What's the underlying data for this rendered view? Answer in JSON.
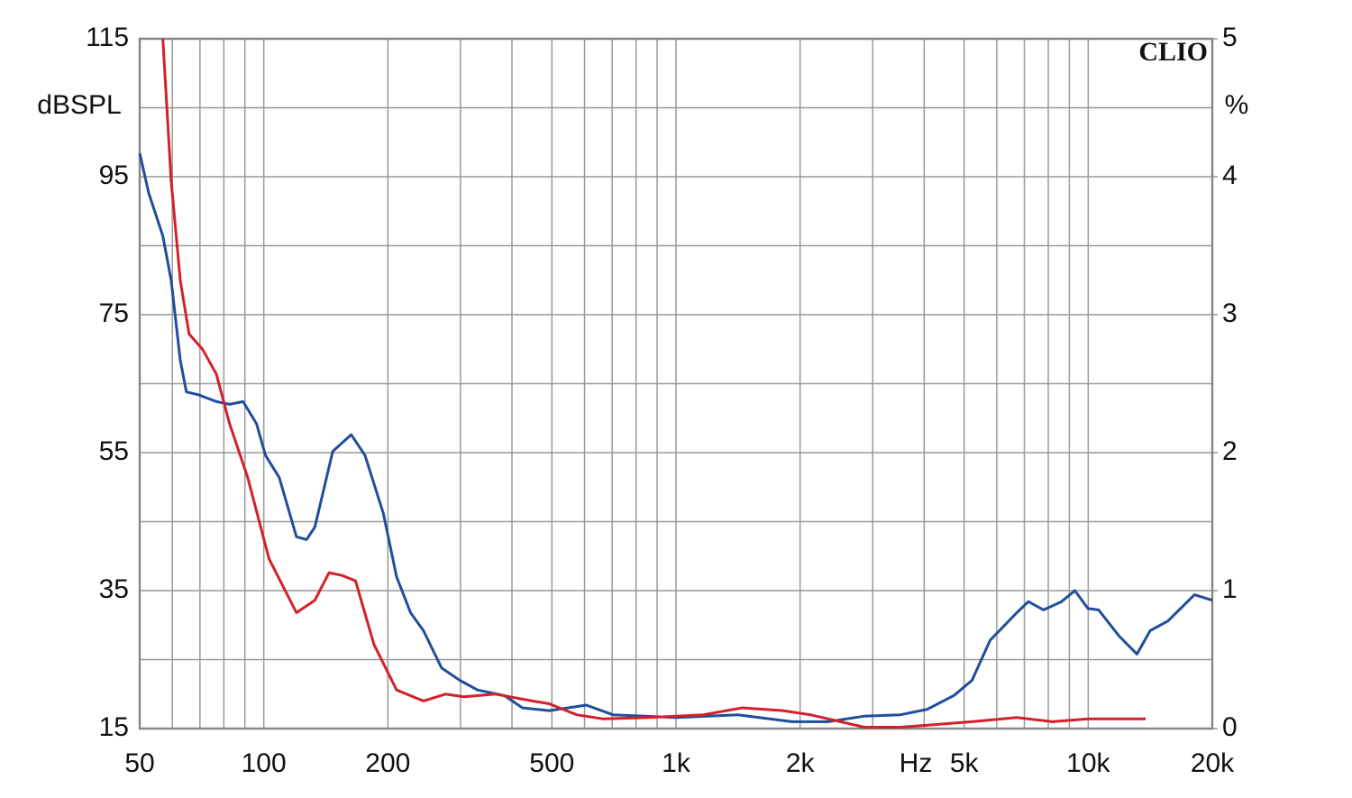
{
  "chart_data": {
    "type": "line",
    "y_label": "dBSPL",
    "y2_label": "%",
    "x_label": "Hz",
    "annotation": "CLIO",
    "xscale": "log",
    "grid": true,
    "xlim": [
      50,
      20000
    ],
    "ylim": [
      15,
      115
    ],
    "y2lim": [
      0,
      5
    ],
    "xticks": [
      {
        "value": 50,
        "label": "50"
      },
      {
        "value": 60,
        "label": null
      },
      {
        "value": 70,
        "label": null
      },
      {
        "value": 80,
        "label": null
      },
      {
        "value": 90,
        "label": null
      },
      {
        "value": 100,
        "label": "100"
      },
      {
        "value": 200,
        "label": "200"
      },
      {
        "value": 300,
        "label": null
      },
      {
        "value": 400,
        "label": null
      },
      {
        "value": 500,
        "label": "500"
      },
      {
        "value": 600,
        "label": null
      },
      {
        "value": 700,
        "label": null
      },
      {
        "value": 800,
        "label": null
      },
      {
        "value": 900,
        "label": null
      },
      {
        "value": 1000,
        "label": "1k"
      },
      {
        "value": 2000,
        "label": "2k"
      },
      {
        "value": 3000,
        "label": null
      },
      {
        "value": 4000,
        "label": null
      },
      {
        "value": 5000,
        "label": "5k"
      },
      {
        "value": 6000,
        "label": null
      },
      {
        "value": 7000,
        "label": null
      },
      {
        "value": 8000,
        "label": null
      },
      {
        "value": 9000,
        "label": null
      },
      {
        "value": 10000,
        "label": "10k"
      },
      {
        "value": 20000,
        "label": "20k"
      }
    ],
    "yticks": [
      15,
      {
        "value": 25,
        "label": null
      },
      35,
      {
        "value": 45,
        "label": null
      },
      55,
      {
        "value": 65,
        "label": null
      },
      75,
      {
        "value": 85,
        "label": null
      },
      95,
      {
        "value": 105,
        "label": null
      },
      115
    ],
    "y2ticks": [
      0,
      1,
      2,
      3,
      4,
      5
    ],
    "series": [
      {
        "color": "#1f4e9c",
        "axis": "y2",
        "x": [
          50,
          52.6,
          56.9,
          59.6,
          62.7,
          64.9,
          69.3,
          76.7,
          82.6,
          89.1,
          96,
          101,
          109,
          120,
          127,
          133,
          147,
          163,
          176,
          195,
          210,
          227,
          244,
          270,
          299,
          330,
          383,
          424,
          493,
          606,
          703,
          1000,
          1412,
          1912,
          2339,
          2865,
          3505,
          4073,
          4725,
          5226,
          5780,
          6711,
          7160,
          7791,
          8617,
          9280,
          9990,
          10600,
          11890,
          13130,
          14140,
          15610,
          18100,
          20000
        ],
        "values": [
          4.17,
          3.88,
          3.57,
          3.25,
          2.67,
          2.44,
          2.42,
          2.37,
          2.35,
          2.37,
          2.21,
          1.98,
          1.82,
          1.39,
          1.37,
          1.46,
          2.01,
          2.13,
          1.98,
          1.56,
          1.1,
          0.84,
          0.71,
          0.44,
          0.35,
          0.28,
          0.24,
          0.15,
          0.13,
          0.17,
          0.1,
          0.08,
          0.1,
          0.05,
          0.05,
          0.09,
          0.1,
          0.14,
          0.24,
          0.35,
          0.64,
          0.84,
          0.92,
          0.86,
          0.92,
          1.0,
          0.87,
          0.86,
          0.67,
          0.54,
          0.71,
          0.78,
          0.97,
          0.93
        ]
      },
      {
        "color": "#d4202a",
        "axis": "y2",
        "x": [
          56.9,
          59.6,
          62.7,
          65.9,
          71,
          76.7,
          82.6,
          91.4,
          103,
          120,
          133,
          144,
          155,
          167,
          185,
          210,
          244,
          276,
          306,
          365,
          448,
          493,
          574,
          667,
          860,
          1164,
          1449,
          1819,
          2116,
          2865,
          3505,
          5226,
          6711,
          8191,
          9990,
          13780
        ],
        "values": [
          5.0,
          3.97,
          3.25,
          2.86,
          2.75,
          2.57,
          2.21,
          1.82,
          1.23,
          0.84,
          0.93,
          1.13,
          1.11,
          1.07,
          0.61,
          0.28,
          0.2,
          0.25,
          0.23,
          0.25,
          0.2,
          0.18,
          0.1,
          0.07,
          0.08,
          0.1,
          0.15,
          0.13,
          0.1,
          0.01,
          0.01,
          0.05,
          0.08,
          0.05,
          0.07,
          0.07
        ]
      }
    ]
  }
}
